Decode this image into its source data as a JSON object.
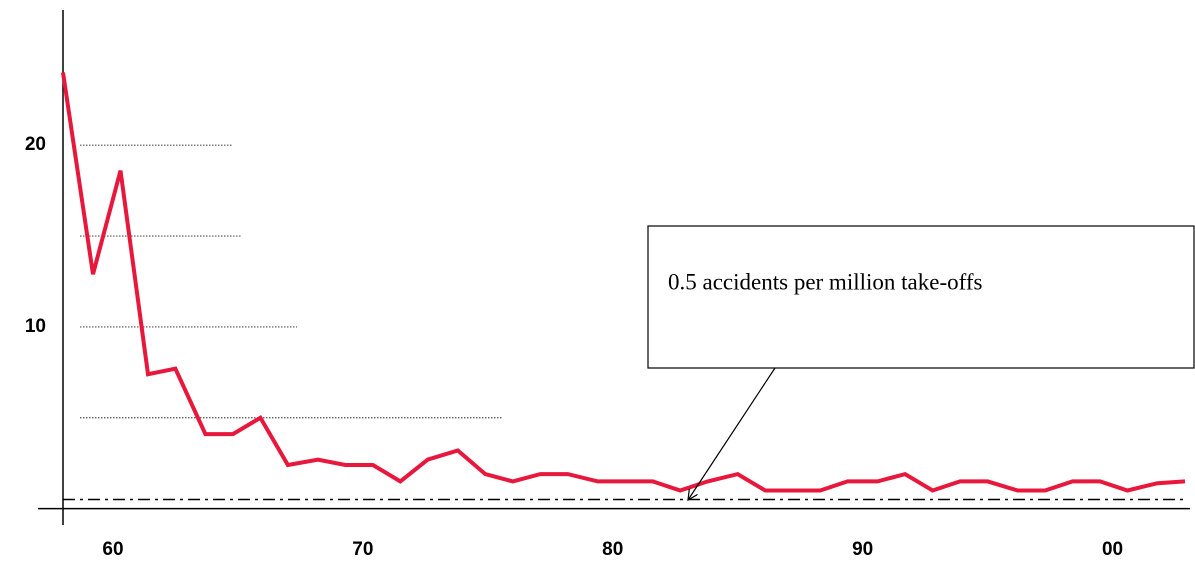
{
  "chart_data": {
    "type": "line",
    "x": [
      1958.0,
      1959.2,
      1960.3,
      1961.4,
      1962.5,
      1963.7,
      1964.8,
      1965.9,
      1967.0,
      1968.2,
      1969.3,
      1970.4,
      1971.5,
      1972.6,
      1973.8,
      1974.9,
      1976.0,
      1977.1,
      1978.2,
      1979.4,
      1980.5,
      1981.6,
      1982.7,
      1983.8,
      1985.0,
      1986.1,
      1987.2,
      1988.3,
      1989.4,
      1990.6,
      1991.7,
      1992.8,
      1993.9,
      1995.0,
      1996.2,
      1997.3,
      1998.4,
      1999.5,
      2000.6,
      2001.8,
      2002.9
    ],
    "series": [
      {
        "color": "#e8173c",
        "values": [
          24.0,
          12.9,
          18.6,
          7.4,
          7.7,
          4.1,
          4.1,
          5.0,
          2.4,
          2.7,
          2.4,
          2.4,
          1.5,
          2.7,
          3.2,
          1.9,
          1.5,
          1.9,
          1.9,
          1.5,
          1.5,
          1.5,
          1.0,
          1.5,
          1.9,
          1.0,
          1.0,
          1.0,
          1.5,
          1.5,
          1.9,
          1.0,
          1.5,
          1.5,
          1.0,
          1.0,
          1.5,
          1.5,
          1.0,
          1.4,
          1.5
        ]
      }
    ],
    "xlim": [
      1957.0,
      2003.1
    ],
    "ylim": [
      -0.9,
      27
    ],
    "xticks": [
      {
        "value": 1960,
        "label": "60"
      },
      {
        "value": 1970,
        "label": "70"
      },
      {
        "value": 1980,
        "label": "80"
      },
      {
        "value": 1990,
        "label": "90"
      },
      {
        "value": 2000,
        "label": "00"
      }
    ],
    "yticks": [
      10,
      20
    ],
    "grid_lines": [
      5,
      10,
      15,
      20
    ],
    "reference_line": 0.5,
    "annotation": {
      "text": "0.5 accidents per million take-offs"
    }
  }
}
